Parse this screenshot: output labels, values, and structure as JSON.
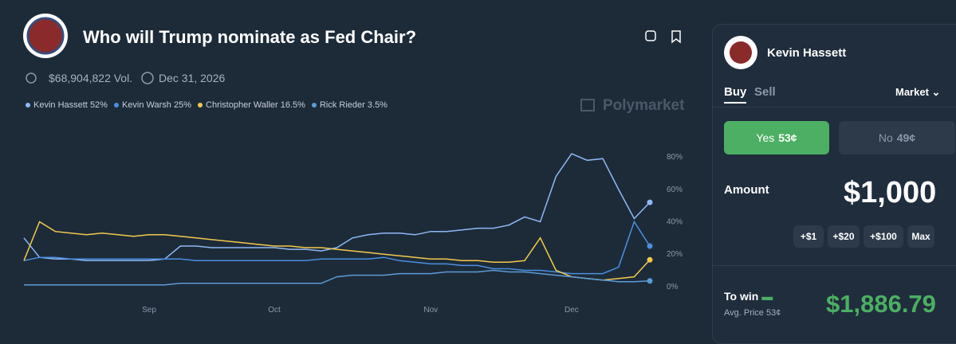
{
  "header": {
    "title": "Who will Trump nominate as Fed Chair?",
    "volume": "$68,904,822 Vol.",
    "end_date": "Dec 31, 2026",
    "brand": "Polymarket"
  },
  "chart_data": {
    "type": "line",
    "categories": [
      null,
      null,
      null,
      null,
      null,
      null,
      null,
      null,
      "Sep",
      null,
      null,
      null,
      null,
      null,
      null,
      null,
      "Oct",
      null,
      null,
      null,
      null,
      null,
      null,
      null,
      null,
      null,
      "Nov",
      null,
      null,
      null,
      null,
      null,
      null,
      null,
      null,
      "Dec",
      null,
      null,
      null,
      null,
      null
    ],
    "series": [
      {
        "name": "Kevin Hassett",
        "legend_label": "52%",
        "color": "#8fb8f5",
        "values": [
          30,
          18,
          17,
          17,
          16,
          16,
          16,
          16,
          16,
          17,
          25,
          25,
          24,
          24,
          24,
          24,
          24,
          23,
          23,
          22,
          24,
          30,
          32,
          33,
          33,
          32,
          34,
          34,
          35,
          36,
          36,
          38,
          43,
          40,
          68,
          82,
          78,
          79,
          60,
          42,
          52
        ]
      },
      {
        "name": "Kevin Warsh",
        "legend_label": "25%",
        "color": "#4a8fe0",
        "values": [
          16,
          18,
          18,
          17,
          17,
          17,
          17,
          17,
          17,
          17,
          17,
          16,
          16,
          16,
          16,
          16,
          16,
          16,
          16,
          17,
          17,
          17,
          17,
          18,
          16,
          15,
          14,
          14,
          13,
          13,
          11,
          11,
          10,
          10,
          9,
          8,
          8,
          8,
          12,
          40,
          25
        ]
      },
      {
        "name": "Christopher Waller",
        "legend_label": "16.5%",
        "color": "#f2c94c",
        "values": [
          16,
          40,
          34,
          33,
          32,
          33,
          32,
          31,
          32,
          32,
          31,
          30,
          29,
          28,
          27,
          26,
          25,
          25,
          24,
          24,
          23,
          22,
          21,
          20,
          19,
          18,
          17,
          17,
          16,
          16,
          15,
          15,
          16,
          30,
          10,
          6,
          5,
          4,
          5,
          6,
          16.5
        ]
      },
      {
        "name": "Rick Rieder",
        "legend_label": "3.5%",
        "color": "#5b9bd5",
        "values": [
          1,
          1,
          1,
          1,
          1,
          1,
          1,
          1,
          1,
          1,
          2,
          2,
          2,
          2,
          2,
          2,
          2,
          2,
          2,
          2,
          6,
          7,
          7,
          7,
          8,
          8,
          8,
          9,
          9,
          9,
          10,
          9,
          9,
          8,
          7,
          6,
          5,
          4,
          3,
          3,
          3.5
        ]
      }
    ],
    "ylim": [
      -5,
      86
    ],
    "yticks": [
      {
        "value": 0,
        "label": "0%"
      },
      {
        "value": 20,
        "label": "20%"
      },
      {
        "value": 40,
        "label": "40%"
      },
      {
        "value": 60,
        "label": "60%"
      },
      {
        "value": 80,
        "label": "80%"
      }
    ],
    "grid": false
  },
  "panel": {
    "name": "Kevin Hassett",
    "buy": "Buy",
    "sell": "Sell",
    "order_type": "Market",
    "yes": "Yes",
    "yes_price": "53¢",
    "no": "No",
    "no_price": "49¢",
    "amount_label": "Amount",
    "amount": "$1,000",
    "increments": [
      "+$1",
      "+$20",
      "+$100",
      "Max"
    ],
    "to_win": "To win",
    "avg_price": "Avg. Price 53¢",
    "payout": "$1,886.79"
  }
}
